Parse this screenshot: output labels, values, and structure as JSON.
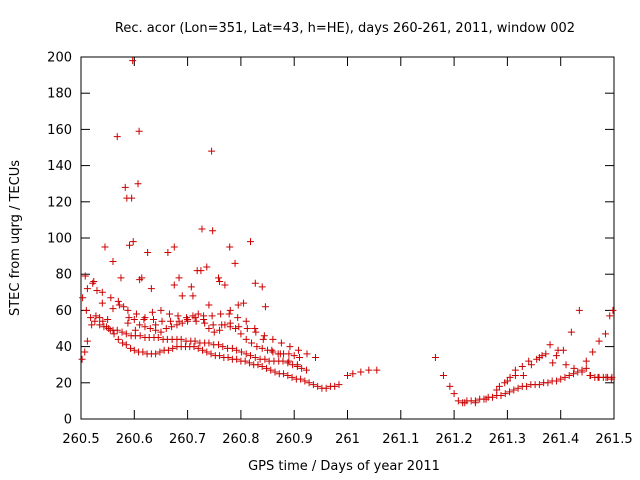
{
  "chart_data": {
    "type": "scatter",
    "title": "Rec. acor (Lon=351, Lat=43, h=HE), days 260-261, 2011, window 002",
    "xlabel": "GPS time / Days of year 2011",
    "ylabel": "STEC from uqrg / TECUs",
    "xlim": [
      260.5,
      261.5
    ],
    "ylim": [
      0,
      200
    ],
    "xticks": [
      "260.5",
      "260.6",
      "260.7",
      "260.8",
      "260.9",
      "261",
      "261.1",
      "261.2",
      "261.3",
      "261.4",
      "261.5"
    ],
    "yticks": [
      "0",
      "20",
      "40",
      "60",
      "80",
      "100",
      "120",
      "140",
      "160",
      "180",
      "200"
    ],
    "grid": false,
    "legend": "none",
    "marker": "plus",
    "color": "#cc0000",
    "series": [
      {
        "x": [
          260.502,
          260.507,
          260.512,
          260.52,
          260.528,
          260.535,
          260.541,
          260.548,
          260.555,
          260.562,
          260.57,
          260.578,
          260.585,
          260.593,
          260.6,
          260.608,
          260.616,
          260.624,
          260.632,
          260.64,
          260.648,
          260.656,
          260.664,
          260.672,
          260.68,
          260.688,
          260.696,
          260.704,
          260.712,
          260.72,
          260.728,
          260.736,
          260.744,
          260.752,
          260.76,
          260.768,
          260.776,
          260.784,
          260.792,
          260.8,
          260.808,
          260.816,
          260.824,
          260.832,
          260.84,
          260.848,
          260.856,
          260.864,
          260.872,
          260.88,
          260.888,
          260.896,
          260.904,
          260.912,
          260.92,
          260.928,
          260.936,
          260.944,
          260.952,
          260.96,
          260.968,
          260.976,
          260.984
        ],
        "y": [
          33,
          37,
          43,
          52,
          57,
          56,
          54,
          51,
          49,
          47,
          44,
          42,
          41,
          39,
          38,
          37,
          37,
          36,
          36,
          36,
          37,
          38,
          38,
          39,
          40,
          40,
          40,
          40,
          40,
          39,
          38,
          37,
          36,
          35,
          35,
          34,
          34,
          33,
          33,
          32,
          32,
          31,
          30,
          30,
          29,
          28,
          27,
          26,
          25,
          25,
          24,
          23,
          22,
          22,
          21,
          20,
          19,
          18,
          17,
          17,
          18,
          18,
          19
        ]
      },
      {
        "x": [
          260.503,
          260.51,
          260.518,
          260.526,
          260.535,
          260.543,
          260.552,
          260.56,
          260.568,
          260.577,
          260.585,
          260.594,
          260.602,
          260.611,
          260.62,
          260.628,
          260.637,
          260.645,
          260.654,
          260.662,
          260.671,
          260.68,
          260.688,
          260.697,
          260.706,
          260.714,
          260.723,
          260.732,
          260.74,
          260.749,
          260.758,
          260.766,
          260.775,
          260.784,
          260.792,
          260.801,
          260.81,
          260.818,
          260.827,
          260.836,
          260.845,
          260.853,
          260.862,
          260.871,
          260.879,
          260.888,
          260.897,
          260.906,
          260.914,
          260.923
        ],
        "y": [
          67,
          60,
          56,
          54,
          52,
          51,
          50,
          49,
          49,
          48,
          47,
          46,
          46,
          46,
          45,
          45,
          45,
          45,
          44,
          44,
          44,
          44,
          44,
          43,
          43,
          43,
          42,
          42,
          42,
          41,
          41,
          40,
          39,
          39,
          38,
          37,
          36,
          35,
          34,
          33,
          33,
          32,
          32,
          32,
          32,
          31,
          30,
          29,
          28,
          27
        ]
      },
      {
        "x": [
          260.508,
          260.524,
          260.54,
          260.556,
          260.572,
          260.588,
          260.604,
          260.62,
          260.636,
          260.652,
          260.668,
          260.684,
          260.7,
          260.716,
          260.732,
          260.748,
          260.764,
          260.78,
          260.796,
          260.812,
          260.828,
          260.844,
          260.86,
          260.876,
          260.892,
          260.908,
          260.924,
          260.94
        ],
        "y": [
          79,
          76,
          70,
          67,
          63,
          60,
          58,
          56,
          55,
          54,
          54,
          54,
          54,
          54,
          53,
          52,
          52,
          51,
          51,
          50,
          48,
          46,
          44,
          42,
          40,
          38,
          36,
          34
        ]
      },
      {
        "x": [
          260.588,
          260.602,
          260.618,
          260.634,
          260.65,
          260.666,
          260.682,
          260.698,
          260.714,
          260.73,
          260.746,
          260.762,
          260.778,
          260.794,
          260.81,
          260.826,
          260.842,
          260.858,
          260.874,
          260.89,
          260.906
        ],
        "y": [
          53,
          49,
          55,
          59,
          60,
          58,
          57,
          56,
          56,
          57,
          57,
          58,
          58,
          56,
          54,
          50,
          44,
          38,
          36,
          32,
          30
        ]
      },
      {
        "x": [
          260.512,
          260.522,
          260.53,
          260.54,
          260.55,
          260.56,
          260.57,
          260.58,
          260.59,
          260.6,
          260.61,
          260.62,
          260.63,
          260.64,
          260.65,
          260.66,
          260.67,
          260.68,
          260.69,
          260.7,
          260.71,
          260.72,
          260.73,
          260.74,
          260.75,
          260.76,
          260.77,
          260.78,
          260.79,
          260.8,
          260.81,
          260.82,
          260.83,
          260.84,
          260.85,
          260.86,
          260.87,
          260.88,
          260.89,
          260.9,
          260.91
        ],
        "y": [
          72,
          75,
          71,
          64,
          55,
          61,
          65,
          62,
          56,
          55,
          52,
          51,
          50,
          49,
          48,
          50,
          51,
          52,
          53,
          55,
          57,
          58,
          55,
          50,
          48,
          49,
          52,
          53,
          50,
          47,
          44,
          42,
          40,
          39,
          38,
          37,
          36,
          36,
          36,
          35,
          34
        ]
      },
      {
        "x": [
          260.568,
          260.583,
          260.586,
          260.591,
          260.595,
          260.597,
          260.607,
          260.609,
          260.614,
          260.625,
          260.632,
          260.663,
          260.675,
          260.684,
          260.707,
          260.718,
          260.727,
          260.736,
          260.745,
          260.747,
          260.758,
          260.779,
          260.789,
          260.818,
          260.827,
          260.84,
          260.846
        ],
        "y": [
          156,
          128,
          122,
          96,
          122,
          198,
          130,
          159,
          78,
          92,
          72,
          92,
          74,
          78,
          73,
          82,
          105,
          84,
          148,
          104,
          78,
          95,
          86,
          98,
          75,
          73,
          62
        ]
      },
      {
        "x": [
          260.545,
          260.56,
          260.575,
          260.598,
          260.61,
          260.64,
          260.675,
          260.69,
          260.71,
          260.725,
          260.74,
          260.76,
          260.77,
          260.78,
          260.795,
          260.805
        ],
        "y": [
          95,
          87,
          78,
          98,
          77,
          52,
          95,
          68,
          68,
          82,
          63,
          76,
          74,
          60,
          63,
          64
        ]
      },
      {
        "x": [
          261.0,
          261.01,
          261.025,
          261.04,
          261.055
        ],
        "y": [
          24,
          25,
          26,
          27,
          27
        ]
      },
      {
        "x": [
          261.165,
          261.18,
          261.192,
          261.2,
          261.208,
          261.216,
          261.224,
          261.232,
          261.24,
          261.248,
          261.256,
          261.264,
          261.272,
          261.28,
          261.288,
          261.296,
          261.304,
          261.312,
          261.32,
          261.328,
          261.336,
          261.344,
          261.352,
          261.36,
          261.368,
          261.376,
          261.384,
          261.392,
          261.4,
          261.408,
          261.416,
          261.424,
          261.432,
          261.44,
          261.448,
          261.456,
          261.464,
          261.472,
          261.48,
          261.488,
          261.496
        ],
        "y": [
          34,
          24,
          18,
          14,
          10,
          9,
          10,
          10,
          10,
          11,
          11,
          12,
          12,
          13,
          13,
          14,
          15,
          16,
          17,
          18,
          18,
          19,
          19,
          19,
          20,
          20,
          21,
          21,
          22,
          23,
          24,
          25,
          26,
          27,
          28,
          24,
          23,
          23,
          23,
          23,
          23
        ]
      },
      {
        "x": [
          261.22,
          261.24,
          261.26,
          261.28,
          261.295,
          261.305,
          261.315,
          261.33,
          261.345,
          261.36,
          261.372,
          261.385,
          261.395,
          261.41,
          261.425,
          261.44,
          261.455,
          261.47,
          261.485,
          261.495
        ],
        "y": [
          9,
          9,
          11,
          16,
          20,
          23,
          27,
          24,
          30,
          34,
          36,
          31,
          38,
          30,
          28,
          26,
          24,
          23,
          23,
          22
        ]
      },
      {
        "x": [
          261.285,
          261.3,
          261.315,
          261.328,
          261.34,
          261.355,
          261.365,
          261.38,
          261.392,
          261.405,
          261.42,
          261.435,
          261.448,
          261.46,
          261.472,
          261.484,
          261.492,
          261.498
        ],
        "y": [
          18,
          21,
          24,
          29,
          32,
          33,
          35,
          41,
          35,
          38,
          48,
          60,
          32,
          37,
          43,
          47,
          57,
          60
        ]
      }
    ]
  }
}
